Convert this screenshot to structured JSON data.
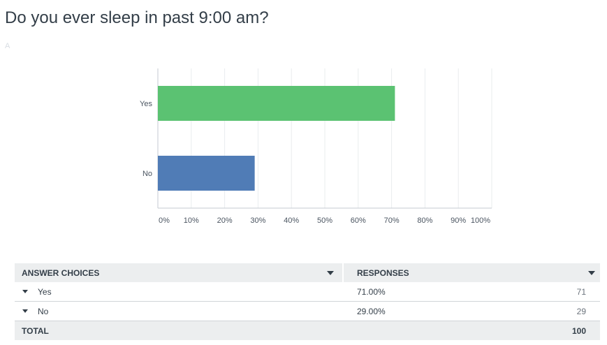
{
  "question": {
    "title": "Do you ever sleep in past 9:00 am?",
    "answered_note": "A"
  },
  "chart_data": {
    "type": "bar",
    "orientation": "horizontal",
    "categories": [
      "Yes",
      "No"
    ],
    "values": [
      71,
      29
    ],
    "colors": [
      "#5bc272",
      "#507cb6"
    ],
    "xlim": [
      0,
      100
    ],
    "xticks": [
      "0%",
      "10%",
      "20%",
      "30%",
      "40%",
      "50%",
      "60%",
      "70%",
      "80%",
      "90%",
      "100%"
    ],
    "grid": true,
    "title": "",
    "xlabel": "",
    "ylabel": ""
  },
  "table": {
    "headers": {
      "answer_choices": "ANSWER CHOICES",
      "responses": "RESPONSES"
    },
    "rows": [
      {
        "choice": "Yes",
        "percent": "71.00%",
        "count": "71"
      },
      {
        "choice": "No",
        "percent": "29.00%",
        "count": "29"
      }
    ],
    "total": {
      "label": "TOTAL",
      "count": "100"
    }
  },
  "icons": {
    "sort": "caret-down-icon",
    "expand": "caret-down-icon"
  }
}
